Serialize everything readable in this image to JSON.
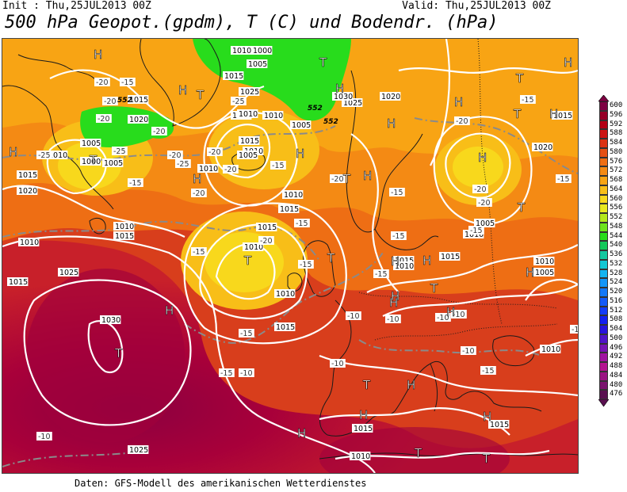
{
  "header": {
    "init": "Init : Thu,25JUL2013 00Z",
    "valid": "Valid: Thu,25JUL2013 00Z",
    "title": "500 hPa Geopot.(gpdm), T (C) und Bodendr. (hPa)"
  },
  "footer": "Daten: GFS-Modell des amerikanischen Wetterdienstes",
  "colors": {
    "ocean_deep": "#a8003a",
    "ocean_mid": "#c8202a",
    "warm": "#e04a1a",
    "orange": "#f07a14",
    "light_orange": "#f7a41c",
    "yellow": "#f9d81e",
    "green": "#22d020",
    "land_line": "#1a1a1a",
    "isobar": "#ffffff",
    "temp_line": "#8a8a8a"
  },
  "legend": {
    "labels": [
      "600",
      "596",
      "592",
      "588",
      "584",
      "580",
      "576",
      "572",
      "568",
      "564",
      "560",
      "556",
      "552",
      "548",
      "544",
      "540",
      "536",
      "532",
      "528",
      "524",
      "520",
      "516",
      "512",
      "508",
      "504",
      "500",
      "496",
      "492",
      "488",
      "484",
      "480",
      "476"
    ],
    "colors": [
      "#7e0042",
      "#960026",
      "#b40016",
      "#cc1414",
      "#dc3214",
      "#e65014",
      "#ee6e14",
      "#f48a14",
      "#f8a414",
      "#f8be18",
      "#f8d81c",
      "#e8e820",
      "#b4e81c",
      "#6ee41c",
      "#28dc1c",
      "#14c85a",
      "#14c8a0",
      "#14c8d4",
      "#14b4f0",
      "#1496f8",
      "#1478f8",
      "#145af8",
      "#143cf8",
      "#1420f0",
      "#2814dc",
      "#5014c8",
      "#7814b4",
      "#a014a0",
      "#b41490",
      "#9a1482",
      "#7a146e",
      "#5a1050"
    ]
  },
  "map": {
    "pressure_labels": [
      {
        "t": "1020"
      },
      {
        "t": "1015"
      },
      {
        "t": "1010"
      },
      {
        "t": "1005"
      },
      {
        "t": "1000"
      },
      {
        "t": "1005"
      },
      {
        "t": "1010"
      },
      {
        "t": "1015"
      },
      {
        "t": "1025"
      },
      {
        "t": "1030"
      },
      {
        "t": "1015"
      },
      {
        "t": "1010"
      },
      {
        "t": "1020"
      },
      {
        "t": "1015"
      },
      {
        "t": "1010"
      },
      {
        "t": "1005"
      },
      {
        "t": "1000"
      },
      {
        "t": "1015"
      },
      {
        "t": "1010"
      },
      {
        "t": "1025"
      },
      {
        "t": "1010"
      },
      {
        "t": "1010"
      },
      {
        "t": "1015"
      },
      {
        "t": "1010"
      },
      {
        "t": "1005"
      },
      {
        "t": "1010"
      },
      {
        "t": "1015"
      },
      {
        "t": "1020"
      },
      {
        "t": "1025"
      },
      {
        "t": "1030"
      },
      {
        "t": "1025"
      },
      {
        "t": "1015"
      },
      {
        "t": "1010"
      },
      {
        "t": "1015"
      },
      {
        "t": "1010"
      },
      {
        "t": "1015"
      },
      {
        "t": "1010"
      },
      {
        "t": "1015"
      },
      {
        "t": "1010"
      },
      {
        "t": "1005"
      },
      {
        "t": "1010"
      },
      {
        "t": "1005"
      },
      {
        "t": "1015"
      },
      {
        "t": "1010"
      },
      {
        "t": "1015"
      },
      {
        "t": "1020"
      },
      {
        "t": "1015"
      },
      {
        "t": "1010"
      },
      {
        "t": "1005"
      },
      {
        "t": "1010"
      }
    ],
    "temp_labels": [
      "-20",
      "-15",
      "-20",
      "-20",
      "-25",
      "-20",
      "-15",
      "-20",
      "-25",
      "-20",
      "-15",
      "-20",
      "-15",
      "-15",
      "-15",
      "-15",
      "-20",
      "-15",
      "-10",
      "-10",
      "-15",
      "-20",
      "-15",
      "-15",
      "-20",
      "-20",
      "-15",
      "-15",
      "-10",
      "-10",
      "-15",
      "-10",
      "-10",
      "-10",
      "-15",
      "-10",
      "-15",
      "-20",
      "-25",
      "-25",
      "-20"
    ],
    "height_labels": [
      "552",
      "552",
      "552"
    ],
    "centers": [
      {
        "s": "H"
      },
      {
        "s": "H"
      },
      {
        "s": "H"
      },
      {
        "s": "T"
      },
      {
        "s": "T"
      },
      {
        "s": "H"
      },
      {
        "s": "T"
      },
      {
        "s": "H"
      },
      {
        "s": "T"
      },
      {
        "s": "H"
      },
      {
        "s": "T"
      },
      {
        "s": "H"
      },
      {
        "s": "H"
      },
      {
        "s": "T"
      },
      {
        "s": "H"
      },
      {
        "s": "H"
      },
      {
        "s": "T"
      },
      {
        "s": "H"
      },
      {
        "s": "T"
      },
      {
        "s": "H"
      },
      {
        "s": "T"
      },
      {
        "s": "H"
      },
      {
        "s": "H"
      },
      {
        "s": "T"
      },
      {
        "s": "H"
      },
      {
        "s": "H"
      },
      {
        "s": "T"
      },
      {
        "s": "H"
      },
      {
        "s": "H"
      },
      {
        "s": "T"
      },
      {
        "s": "T"
      },
      {
        "s": "H"
      },
      {
        "s": "H"
      },
      {
        "s": "H"
      },
      {
        "s": "T"
      },
      {
        "s": "H"
      },
      {
        "s": "H"
      }
    ]
  }
}
